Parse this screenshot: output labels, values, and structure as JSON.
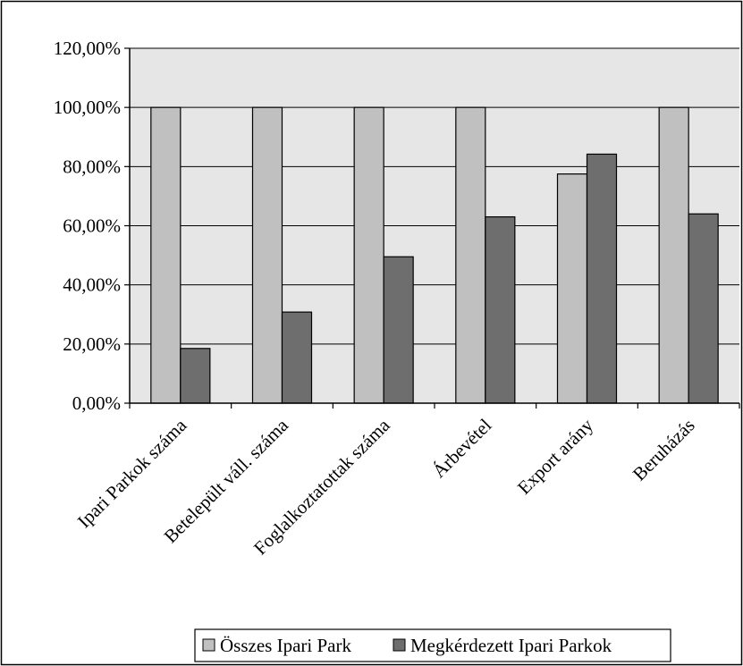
{
  "chart_data": {
    "type": "bar",
    "categories": [
      "Ipari Parkok száma",
      "Betelepült váll. száma",
      "Foglalkoztatottak száma",
      "Árbevétel",
      "Export arány",
      "Beruházás"
    ],
    "series": [
      {
        "name": "Összes Ipari Park",
        "color": "#c0c0c0",
        "values": [
          100,
          100,
          100,
          100,
          77.5,
          100
        ]
      },
      {
        "name": "Megkérdezett Ipari Parkok",
        "color": "#6e6e6e",
        "values": [
          18.5,
          30.8,
          49.5,
          63,
          84.2,
          64
        ]
      }
    ],
    "y_ticks": [
      "0,00%",
      "20,00%",
      "40,00%",
      "60,00%",
      "80,00%",
      "100,00%",
      "120,00%"
    ],
    "ylim": [
      0,
      120
    ],
    "grid": true,
    "plot_background": "#e6e6e6",
    "legend_position": "bottom"
  }
}
